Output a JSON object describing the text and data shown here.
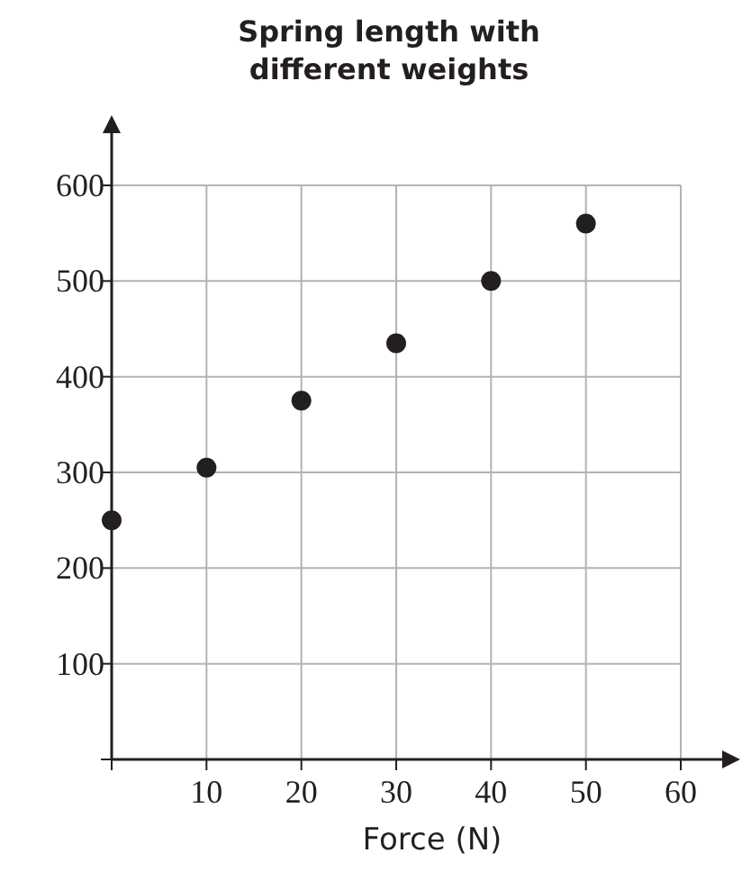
{
  "chart_data": {
    "type": "scatter",
    "title": "Spring length with different weights",
    "xlabel": "Force (N)",
    "x": [
      0,
      10,
      20,
      30,
      40,
      50
    ],
    "values": [
      250,
      305,
      375,
      435,
      500,
      560
    ],
    "color": "#231f20",
    "xlim": [
      0,
      60
    ],
    "ylim": [
      0,
      600
    ],
    "xticks": [
      {
        "value": 0,
        "label": null
      },
      10,
      20,
      30,
      40,
      50,
      60
    ],
    "yticks": [
      {
        "value": 0,
        "label": null
      },
      100,
      200,
      300,
      400,
      500,
      600
    ],
    "grid": true,
    "marker": "circle"
  }
}
